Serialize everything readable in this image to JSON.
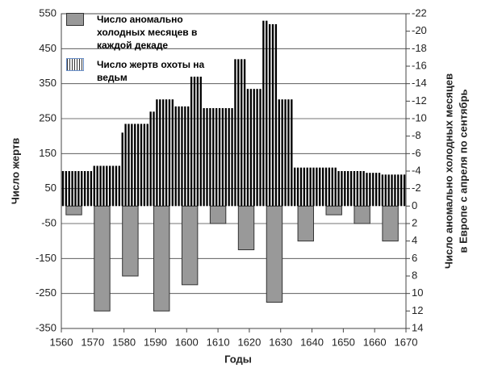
{
  "chart_data": {
    "type": "bar",
    "xlabel": "Годы",
    "ylabel": "Число жертв",
    "y2label": [
      "Число аномально холодных месяцев",
      "в Европе с апреля по сентябрь"
    ],
    "xlim": [
      1560,
      1670
    ],
    "xticks": [
      1560,
      1570,
      1580,
      1590,
      1600,
      1610,
      1620,
      1630,
      1640,
      1650,
      1660,
      1670
    ],
    "ylim": [
      -350,
      550
    ],
    "yticks": [
      -350,
      -250,
      -150,
      -50,
      50,
      150,
      250,
      350,
      450,
      550
    ],
    "y2lim": [
      14,
      -22
    ],
    "y2ticks": [
      -22,
      -20,
      -18,
      -16,
      -14,
      -12,
      -10,
      -8,
      -6,
      -4,
      -2,
      0,
      2,
      4,
      6,
      8,
      10,
      12,
      14
    ],
    "grid": true,
    "series": [
      {
        "name": "Число аномально холодных месяцев в каждой декаде",
        "color": "#999999",
        "axis": "y2",
        "x": [
          1564,
          1573,
          1582,
          1592,
          1601,
          1610,
          1619,
          1628,
          1638,
          1647,
          1656,
          1665
        ],
        "values": [
          1,
          12,
          8,
          12,
          9,
          2,
          5,
          11,
          4,
          1,
          2,
          4
        ]
      },
      {
        "name": "Число жертв охоты на ведьм",
        "color": "#000000",
        "axis": "y",
        "x": [
          1560,
          1561,
          1562,
          1563,
          1564,
          1565,
          1566,
          1567,
          1568,
          1569,
          1570,
          1571,
          1572,
          1573,
          1574,
          1575,
          1576,
          1577,
          1578,
          1579,
          1580,
          1581,
          1582,
          1583,
          1584,
          1585,
          1586,
          1587,
          1588,
          1589,
          1590,
          1591,
          1592,
          1593,
          1594,
          1595,
          1596,
          1597,
          1598,
          1599,
          1600,
          1601,
          1602,
          1603,
          1604,
          1605,
          1606,
          1607,
          1608,
          1609,
          1610,
          1611,
          1612,
          1613,
          1614,
          1615,
          1616,
          1617,
          1618,
          1619,
          1620,
          1621,
          1622,
          1623,
          1624,
          1625,
          1626,
          1627,
          1628,
          1629,
          1630,
          1631,
          1632,
          1633,
          1634,
          1635,
          1636,
          1637,
          1638,
          1639,
          1640,
          1641,
          1642,
          1643,
          1644,
          1645,
          1646,
          1647,
          1648,
          1649,
          1650,
          1651,
          1652,
          1653,
          1654,
          1655,
          1656,
          1657,
          1658,
          1659,
          1660,
          1661,
          1662,
          1663,
          1664,
          1665,
          1666,
          1667,
          1668,
          1669
        ],
        "values": [
          100,
          100,
          100,
          100,
          100,
          100,
          100,
          100,
          100,
          100,
          115,
          115,
          115,
          115,
          115,
          115,
          115,
          115,
          115,
          210,
          235,
          235,
          235,
          235,
          235,
          235,
          235,
          235,
          270,
          270,
          305,
          305,
          305,
          305,
          305,
          305,
          285,
          285,
          285,
          285,
          285,
          370,
          370,
          370,
          370,
          280,
          280,
          280,
          280,
          280,
          280,
          280,
          280,
          280,
          280,
          420,
          420,
          420,
          420,
          335,
          335,
          335,
          335,
          335,
          530,
          530,
          520,
          520,
          520,
          305,
          305,
          305,
          305,
          305,
          110,
          110,
          110,
          110,
          110,
          110,
          110,
          110,
          110,
          110,
          110,
          110,
          110,
          110,
          100,
          100,
          100,
          100,
          100,
          100,
          100,
          100,
          100,
          95,
          95,
          95,
          95,
          95,
          90,
          90,
          90,
          90,
          90,
          90,
          90,
          90
        ]
      }
    ]
  }
}
